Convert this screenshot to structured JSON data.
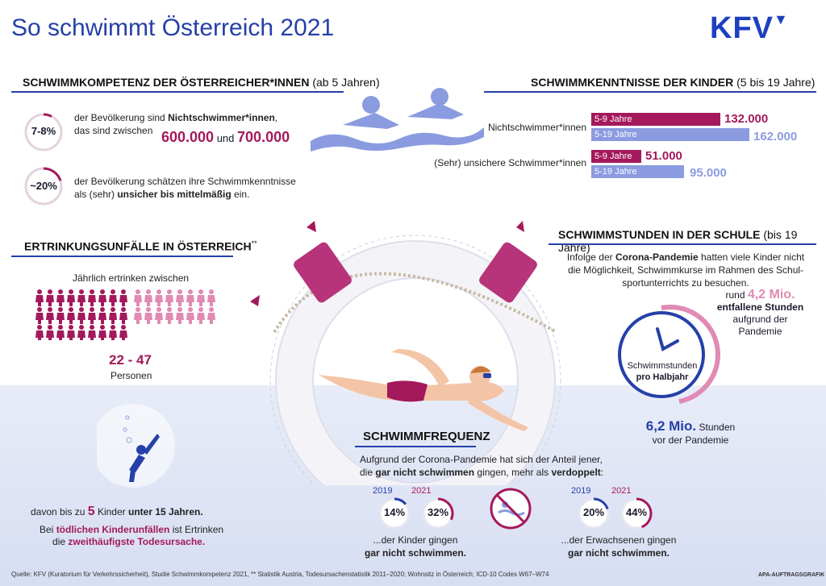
{
  "title": "So schwimmt Österreich 2021",
  "logo": "KFV",
  "competence": {
    "heading": "SCHWIMMKOMPETENZ DER ÖSTERREICHER*INNEN",
    "heading_note": "(ab 5 Jahren)",
    "item1": {
      "circle": "7-8%",
      "line1_pre": "der Bevölkerung sind ",
      "line1_bold": "Nichtschwimmer*innen",
      "line1_post": ",",
      "line2": "das sind zwischen",
      "num1": "600.000",
      "and": "und",
      "num2": "700.000",
      "fill": 0.075
    },
    "item2": {
      "circle": "~20%",
      "line1": "der Bevölkerung schätzen ihre Schwimmkenntnisse",
      "line2_pre": "als (sehr) ",
      "line2_bold": "unsicher bis mittelmäßig",
      "line2_post": " ein.",
      "fill": 0.2
    }
  },
  "children": {
    "heading": "SCHWIMMKENNTNISSE DER KINDER",
    "heading_note": "(5 bis 19 Jahre)",
    "rows": [
      {
        "label": "Nichtschwimmer*innen",
        "bars": [
          {
            "age": "5-9 Jahre",
            "value": "132.000"
          },
          {
            "age": "5-19 Jahre",
            "value": "162.000"
          }
        ]
      },
      {
        "label": "(Sehr) unsichere Schwimmer*innen",
        "bars": [
          {
            "age": "5-9 Jahre",
            "value": "51.000"
          },
          {
            "age": "5-19 Jahre",
            "value": "95.000"
          }
        ]
      }
    ]
  },
  "drowning": {
    "heading": "ERTRINKUNGSUNFÄLLE IN ÖSTERREICH",
    "heading_note": "**",
    "intro": "Jährlich ertrinken zwischen",
    "range": "22 - 47",
    "unit": "Personen",
    "kids_pre": "davon bis zu ",
    "kids_num": "5",
    "kids_mid": " Kinder ",
    "kids_bold": "unter 15 Jahren.",
    "fatal_pre": "Bei ",
    "fatal_bold": "tödlichen Kinderunfällen",
    "fatal_mid": " ist Ertrinken",
    "fatal_line2_pre": "die ",
    "fatal_line2_bold": "zweithäufigste Todesursache."
  },
  "school": {
    "heading": "SCHWIMMSTUNDEN IN DER SCHULE",
    "heading_note": "(bis 19 Jahre)",
    "text_pre": "Infolge der ",
    "text_bold": "Corona-Pandemie",
    "text_l1_post": " hatten viele Kinder nicht",
    "text_l2": "die Möglichkeit, Schwimmkurse im Rahmen des Schul-",
    "text_l3": "sportunterrichts zu besuchen.",
    "lost_pre": "rund ",
    "lost_num": "4,2 Mio.",
    "lost_bold": "entfallene Stunden",
    "lost_l3": "aufgrund der",
    "lost_l4": "Pandemie",
    "clock_l1": "Schwimmstunden",
    "clock_l2": "pro Halbjahr",
    "before_num": "6,2 Mio.",
    "before_unit": "Stunden",
    "before_l2": "vor der Pandemie"
  },
  "frequency": {
    "heading": "SCHWIMMFREQUENZ",
    "text_l1": "Aufgrund der Corona-Pandemie hat sich der Anteil jener,",
    "text_l2_pre": "die ",
    "text_l2_bold": "gar nicht schwimmen",
    "text_l2_mid": " gingen, mehr als ",
    "text_l2_bold2": "verdoppelt",
    "text_l2_post": ":",
    "kids": {
      "y1": "2019",
      "v1": "14%",
      "y2": "2021",
      "v2": "32%",
      "cap1": "...der Kinder gingen",
      "cap2": "gar nicht schwimmen."
    },
    "adults": {
      "y1": "2019",
      "v1": "20%",
      "y2": "2021",
      "v2": "44%",
      "cap1": "...der Erwachsenen gingen",
      "cap2": "gar nicht schwimmen."
    }
  },
  "footer": "Quelle: KFV (Kuratorium für Verkehrssicherheit), Studie Schwimmkompetenz 2021, ** Statistik Austria, Todesursachenstatistik 2011–2020; Wohnsitz in Österreich; ICD-10 Codes W67–W74",
  "agency": "APA-AUFTRAGSGRAFIK",
  "colors": {
    "accent": "#2540a8",
    "magenta": "#a3195b",
    "light_blue": "#8a9be0",
    "pink": "#e08ab4"
  }
}
